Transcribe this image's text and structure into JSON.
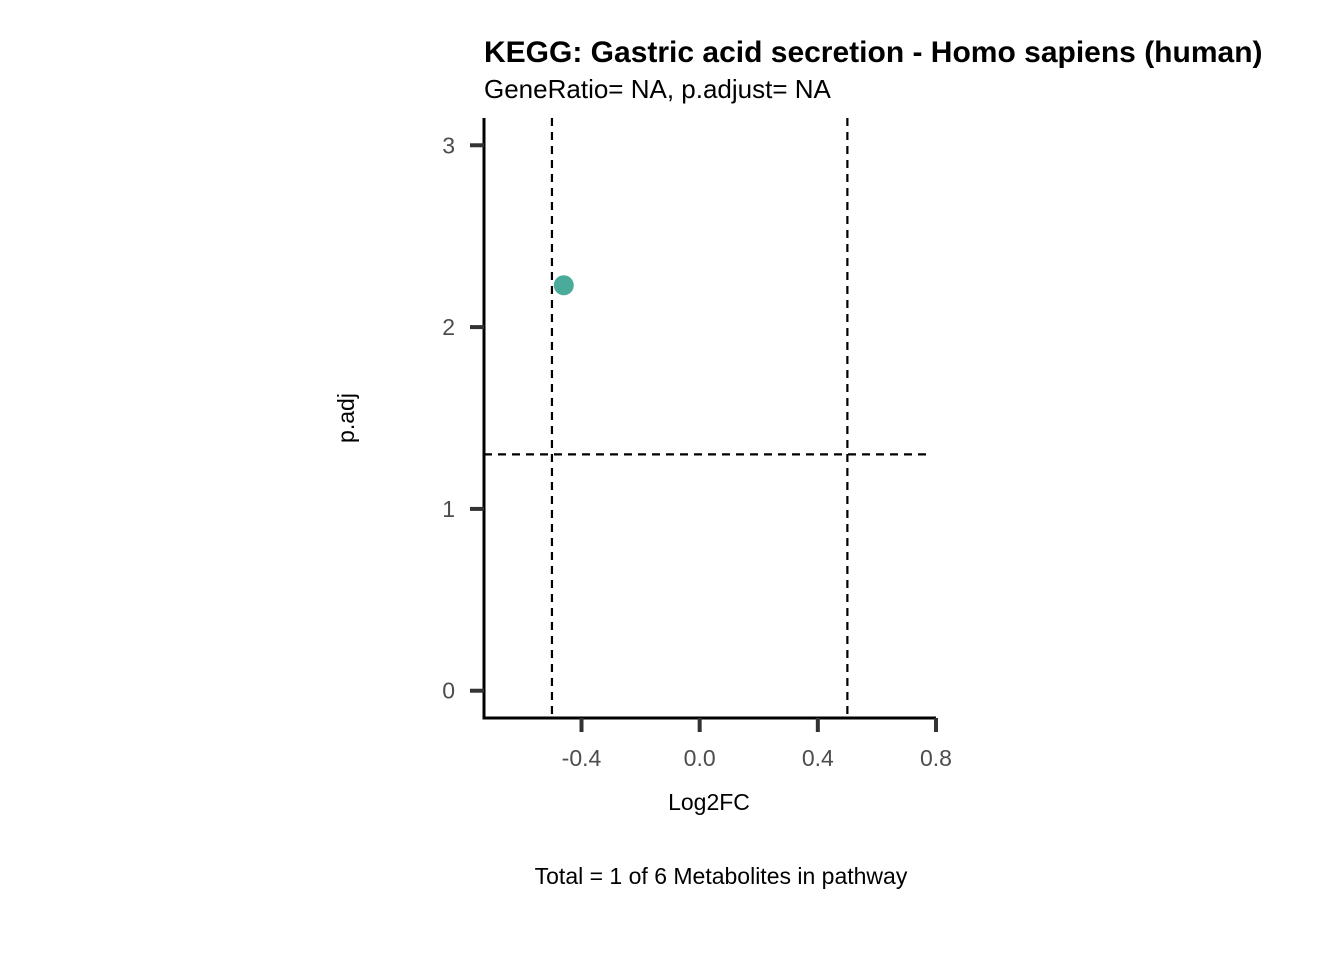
{
  "chart_data": {
    "type": "scatter",
    "title": "KEGG: Gastric acid secretion - Homo sapiens (human)",
    "subtitle": "GeneRatio= NA, p.adjust= NA",
    "xlabel": "Log2FC",
    "ylabel": "p.adj",
    "caption": "Total = 1 of 6 Metabolites in pathway",
    "xlim": [
      -0.73,
      0.8
    ],
    "ylim": [
      -0.15,
      3.15
    ],
    "x_ticks": [
      -0.4,
      0.0,
      0.4,
      0.8
    ],
    "x_tick_labels": [
      "-0.4",
      "0.0",
      "0.4",
      "0.8"
    ],
    "y_ticks": [
      0,
      1,
      2,
      3
    ],
    "y_tick_labels": [
      "0",
      "1",
      "2",
      "3"
    ],
    "grid": false,
    "reference_lines": {
      "vertical_x": [
        -0.5,
        0.5
      ],
      "horizontal_y": [
        1.3
      ]
    },
    "series": [
      {
        "color": "#4aab9a",
        "points": [
          {
            "x": -0.46,
            "y": 2.23
          }
        ]
      }
    ]
  }
}
